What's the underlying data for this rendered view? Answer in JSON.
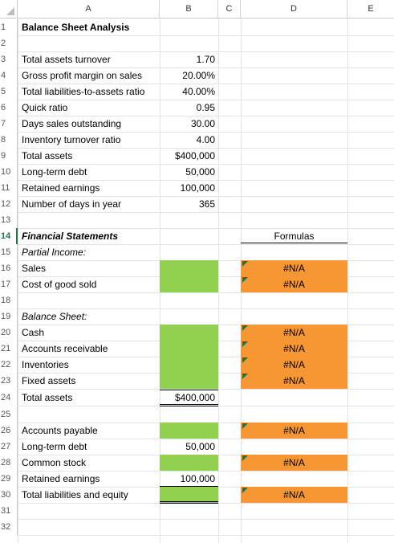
{
  "columns": [
    "A",
    "B",
    "C",
    "D",
    "E"
  ],
  "rows": [
    "1",
    "2",
    "3",
    "4",
    "5",
    "6",
    "7",
    "8",
    "9",
    "10",
    "11",
    "12",
    "13",
    "14",
    "15",
    "16",
    "17",
    "18",
    "19",
    "20",
    "21",
    "22",
    "23",
    "24",
    "25",
    "26",
    "27",
    "28",
    "29",
    "30",
    "31",
    "32"
  ],
  "title": "Balance Sheet Analysis",
  "inputs": [
    {
      "label": "Total assets turnover",
      "value": "1.70"
    },
    {
      "label": "Gross profit margin on sales",
      "value": "20.00%"
    },
    {
      "label": "Total liabilities-to-assets ratio",
      "value": "40.00%"
    },
    {
      "label": "Quick ratio",
      "value": "0.95"
    },
    {
      "label": "Days sales outstanding",
      "value": "30.00"
    },
    {
      "label": "Inventory turnover ratio",
      "value": "4.00"
    },
    {
      "label": "Total assets",
      "value": "$400,000"
    },
    {
      "label": "Long-term debt",
      "value": "50,000"
    },
    {
      "label": "Retained earnings",
      "value": "100,000"
    },
    {
      "label": "Number of days in year",
      "value": "365"
    }
  ],
  "section": {
    "financial_statements": "Financial Statements",
    "formulas_header": "Formulas",
    "partial_income": "Partial Income:",
    "balance_sheet": "Balance Sheet:"
  },
  "income": [
    {
      "label": "Sales",
      "formula": "#N/A"
    },
    {
      "label": "Cost of good sold",
      "formula": "#N/A"
    }
  ],
  "assets": [
    {
      "label": "Cash",
      "formula": "#N/A"
    },
    {
      "label": "Accounts receivable",
      "formula": "#N/A"
    },
    {
      "label": "Inventories",
      "formula": "#N/A"
    },
    {
      "label": "Fixed assets",
      "formula": "#N/A"
    }
  ],
  "total_assets": {
    "label": "Total assets",
    "value": "$400,000"
  },
  "liabilities": [
    {
      "label": "Accounts payable",
      "value": "",
      "formula": "#N/A"
    },
    {
      "label": "Long-term debt",
      "value": "50,000",
      "formula": ""
    },
    {
      "label": "Common stock",
      "value": "",
      "formula": "#N/A"
    },
    {
      "label": "Retained earnings",
      "value": "100,000",
      "formula": ""
    },
    {
      "label": "Total liabilities and equity",
      "value": "",
      "formula": "#N/A"
    }
  ],
  "colors": {
    "input_fill": "#92d050",
    "formula_fill": "#f79733",
    "active_row": "#217346"
  }
}
